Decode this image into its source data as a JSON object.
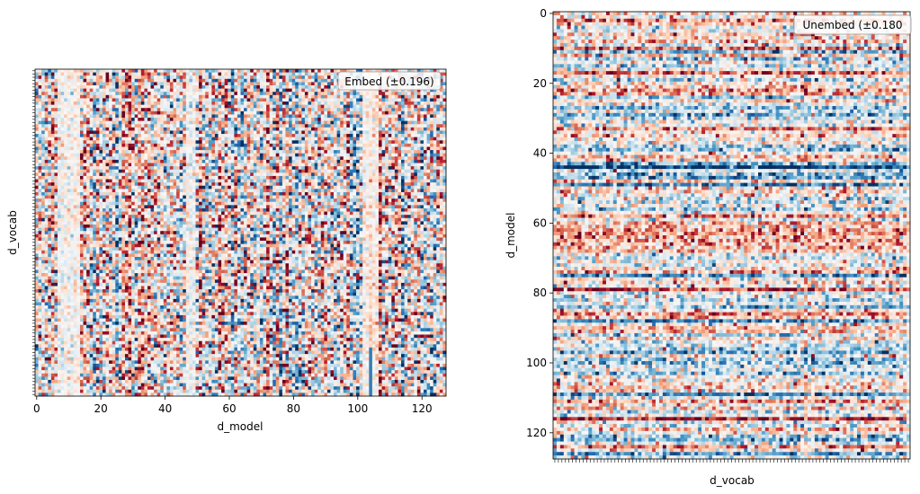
{
  "chart_data": [
    {
      "type": "heatmap",
      "name": "embed",
      "title": "",
      "legend_label": "Embed (±0.196)",
      "legend_position": "top-right",
      "xlabel": "d_model",
      "ylabel": "d_vocab",
      "xlim": [
        0,
        128
      ],
      "ylim": [
        0,
        100
      ],
      "x_ticks": [
        0,
        20,
        40,
        60,
        80,
        100,
        120
      ],
      "y_tick_count": 101,
      "color_scale": {
        "min": -0.196,
        "max": 0.196,
        "colormap": "RdBu_r"
      },
      "grid": false,
      "rows": 101,
      "cols": 128,
      "seed": 12345
    },
    {
      "type": "heatmap",
      "name": "unembed",
      "title": "",
      "legend_label": "Unembed (±0.180",
      "legend_position": "top-right",
      "xlabel": "d_vocab",
      "ylabel": "d_model",
      "ylim": [
        0,
        128
      ],
      "y_ticks": [
        0,
        20,
        40,
        60,
        80,
        100,
        120
      ],
      "x_tick_count": 101,
      "color_scale": {
        "min": -0.18,
        "max": 0.18,
        "colormap": "RdBu_r"
      },
      "grid": false,
      "rows": 128,
      "cols": 101,
      "seed": 67890
    }
  ]
}
